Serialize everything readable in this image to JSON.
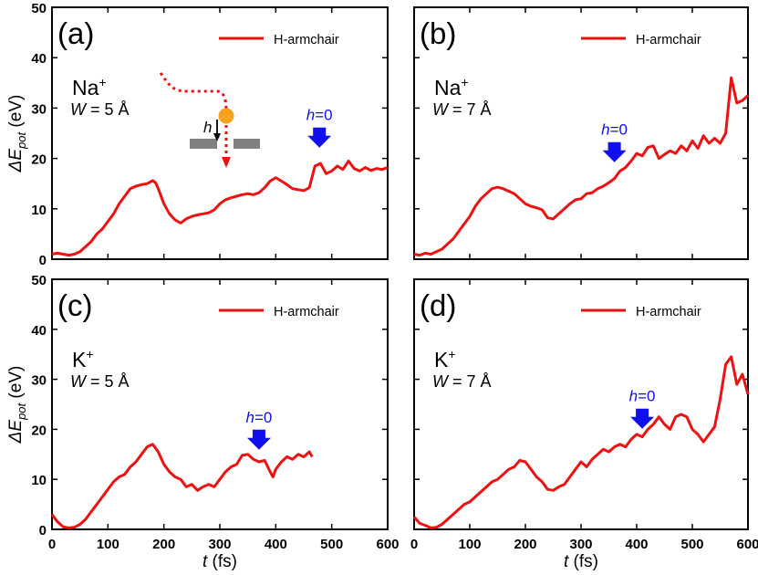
{
  "figure": {
    "y_axis_label": "ΔE",
    "y_axis_label_sub": "pot",
    "y_axis_unit": "(eV)",
    "x_axis_var": "t",
    "x_axis_unit": "(fs)"
  },
  "chart_data": [
    {
      "type": "line",
      "panel": "(a)",
      "ion_base": "Na",
      "ion_sup": "+",
      "width_var": "W",
      "width_value": "= 5 Å",
      "legend": "H-armchair",
      "annotation_var": "h",
      "annotation_value": "=0",
      "arrow_x": 478,
      "inset_label": "h",
      "xlabel": "t (fs)",
      "ylabel": "ΔE_pot (eV)",
      "xlim": [
        0,
        600
      ],
      "ylim": [
        0,
        50
      ],
      "xticks": [
        0,
        100,
        200,
        300,
        400,
        500,
        600
      ],
      "yticks": [
        0,
        10,
        20,
        30,
        40,
        50
      ],
      "color": "#ee1111",
      "x": [
        0,
        10,
        20,
        30,
        40,
        50,
        60,
        70,
        80,
        90,
        100,
        110,
        120,
        130,
        140,
        150,
        160,
        170,
        180,
        185,
        190,
        200,
        210,
        220,
        230,
        240,
        250,
        260,
        270,
        280,
        290,
        300,
        310,
        320,
        330,
        340,
        350,
        360,
        370,
        380,
        390,
        400,
        410,
        420,
        430,
        440,
        450,
        460,
        470,
        480,
        490,
        500,
        510,
        520,
        530,
        540,
        550,
        560,
        570,
        580,
        590,
        600
      ],
      "y": [
        1,
        1.2,
        1,
        0.8,
        1,
        1.5,
        2.5,
        3.5,
        5,
        6,
        7.5,
        9,
        11,
        12.5,
        14,
        14.5,
        14.8,
        15,
        15.6,
        15.2,
        14,
        11,
        9,
        7.8,
        7.2,
        8,
        8.5,
        8.8,
        9,
        9.2,
        9.8,
        11,
        11.8,
        12.2,
        12.5,
        12.8,
        13,
        12.8,
        13.2,
        14.2,
        15.5,
        16.2,
        15.5,
        14.8,
        14,
        13.8,
        13.6,
        14.2,
        18.5,
        19,
        17,
        17.5,
        18.5,
        17.8,
        19.5,
        18,
        17.5,
        18.2,
        17.6,
        18,
        17.8,
        18.2
      ]
    },
    {
      "type": "line",
      "panel": "(b)",
      "ion_base": "Na",
      "ion_sup": "+",
      "width_var": "W",
      "width_value": "= 7 Å",
      "legend": "H-armchair",
      "annotation_var": "h",
      "annotation_value": "=0",
      "arrow_x": 360,
      "xlabel": "t (fs)",
      "ylabel": "ΔE_pot (eV)",
      "xlim": [
        0,
        600
      ],
      "ylim": [
        0,
        50
      ],
      "xticks": [
        0,
        100,
        200,
        300,
        400,
        500,
        600
      ],
      "yticks": [
        0,
        10,
        20,
        30,
        40,
        50
      ],
      "color": "#ee1111",
      "x": [
        0,
        10,
        20,
        30,
        40,
        50,
        60,
        70,
        80,
        90,
        100,
        110,
        120,
        130,
        140,
        150,
        160,
        170,
        180,
        190,
        200,
        210,
        220,
        230,
        240,
        250,
        260,
        270,
        280,
        290,
        300,
        310,
        320,
        330,
        340,
        350,
        360,
        370,
        380,
        390,
        400,
        410,
        420,
        430,
        440,
        450,
        460,
        470,
        480,
        490,
        500,
        510,
        520,
        530,
        540,
        550,
        560,
        565,
        570,
        580,
        590,
        600
      ],
      "y": [
        1,
        0.8,
        1.2,
        1,
        1.5,
        2,
        3,
        4,
        5.5,
        7,
        8.5,
        10.5,
        12,
        13,
        14,
        14.3,
        14,
        13.5,
        13,
        12,
        11,
        10.5,
        10.2,
        9.8,
        8.2,
        8,
        9,
        10,
        11,
        11.8,
        12,
        13,
        13.2,
        14,
        14.5,
        15.2,
        16,
        17.5,
        18.2,
        19.5,
        21,
        20.5,
        22.2,
        22.5,
        20,
        20.8,
        21.5,
        21,
        22.5,
        21.5,
        23.5,
        22,
        24.5,
        23,
        24,
        23,
        25,
        30.5,
        36,
        31,
        31.5,
        32.5
      ]
    },
    {
      "type": "line",
      "panel": "(c)",
      "ion_base": "K",
      "ion_sup": "+",
      "width_var": "W",
      "width_value": "= 5 Å",
      "legend": "H-armchair",
      "annotation_var": "h",
      "annotation_value": "=0",
      "arrow_x": 370,
      "xlabel": "t (fs)",
      "ylabel": "ΔE_pot (eV)",
      "xlim": [
        0,
        600
      ],
      "ylim": [
        0,
        50
      ],
      "xticks": [
        0,
        100,
        200,
        300,
        400,
        500,
        600
      ],
      "yticks": [
        0,
        10,
        20,
        30,
        40,
        50
      ],
      "color": "#ee1111",
      "x": [
        0,
        5,
        10,
        20,
        30,
        40,
        50,
        60,
        70,
        80,
        90,
        100,
        110,
        120,
        130,
        140,
        150,
        160,
        170,
        180,
        190,
        200,
        210,
        220,
        230,
        240,
        250,
        260,
        270,
        280,
        290,
        300,
        310,
        320,
        330,
        340,
        350,
        360,
        370,
        380,
        390,
        395,
        400,
        410,
        420,
        430,
        440,
        450,
        460,
        465
      ],
      "y": [
        3,
        2.2,
        1.5,
        0.5,
        0.3,
        0.4,
        1,
        2,
        3.5,
        5,
        6.5,
        8,
        9.5,
        10.5,
        11,
        12.5,
        13.5,
        15,
        16.5,
        17,
        15.5,
        13,
        11.5,
        10.5,
        10,
        8.5,
        9,
        7.8,
        8.5,
        9,
        8.5,
        10,
        11.5,
        12.5,
        13,
        14.8,
        15,
        14,
        13.5,
        13.8,
        11.5,
        10.5,
        12,
        13.5,
        14.5,
        14,
        15,
        14.5,
        15.5,
        14.5
      ]
    },
    {
      "type": "line",
      "panel": "(d)",
      "ion_base": "K",
      "ion_sup": "+",
      "width_var": "W",
      "width_value": "= 7 Å",
      "legend": "H-armchair",
      "annotation_var": "h",
      "annotation_value": "=0",
      "arrow_x": 410,
      "xlabel": "t (fs)",
      "ylabel": "ΔE_pot (eV)",
      "xlim": [
        0,
        600
      ],
      "ylim": [
        0,
        50
      ],
      "xticks": [
        0,
        100,
        200,
        300,
        400,
        500,
        600
      ],
      "yticks": [
        0,
        10,
        20,
        30,
        40,
        50
      ],
      "color": "#ee1111",
      "x": [
        0,
        10,
        20,
        30,
        40,
        50,
        60,
        70,
        80,
        90,
        100,
        110,
        120,
        130,
        140,
        150,
        160,
        170,
        180,
        190,
        200,
        210,
        220,
        230,
        240,
        250,
        260,
        270,
        280,
        290,
        300,
        310,
        320,
        330,
        340,
        350,
        360,
        370,
        380,
        390,
        400,
        410,
        420,
        430,
        440,
        450,
        460,
        470,
        480,
        490,
        500,
        510,
        520,
        530,
        540,
        550,
        560,
        570,
        580,
        590,
        600
      ],
      "y": [
        2.5,
        1.2,
        0.8,
        0.3,
        0.4,
        1,
        2,
        3,
        4,
        5,
        5.5,
        6.5,
        7.5,
        8.5,
        9.5,
        10,
        11,
        12,
        12.5,
        13.8,
        13.5,
        12,
        10.5,
        9.5,
        8,
        7.8,
        8.5,
        9,
        10.5,
        12,
        13.5,
        12.5,
        14,
        15,
        16,
        15.5,
        16.5,
        17,
        16.5,
        18,
        19,
        18.5,
        20,
        21,
        22.5,
        21,
        20,
        22.5,
        23,
        22.5,
        20,
        19,
        17.5,
        19,
        20.5,
        26,
        33,
        34.5,
        29,
        31,
        27
      ]
    }
  ]
}
